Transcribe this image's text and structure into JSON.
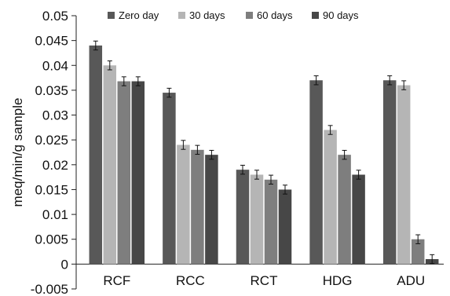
{
  "chart_data": {
    "type": "bar",
    "ylabel": "meq/min/g sample",
    "xlabel": "",
    "title": "",
    "categories": [
      "RCF",
      "RCC",
      "RCT",
      "HDG",
      "ADU"
    ],
    "ylim": [
      -0.005,
      0.05
    ],
    "y_ticks": [
      {
        "value": -0.005,
        "label": "-0.005"
      },
      {
        "value": 0,
        "label": "0"
      },
      {
        "value": 0.005,
        "label": "0.005"
      },
      {
        "value": 0.01,
        "label": "0.01"
      },
      {
        "value": 0.015,
        "label": "0.015"
      },
      {
        "value": 0.02,
        "label": "0.02"
      },
      {
        "value": 0.025,
        "label": "0.025"
      },
      {
        "value": 0.03,
        "label": "0.03"
      },
      {
        "value": 0.035,
        "label": "0.035"
      },
      {
        "value": 0.04,
        "label": "0.04"
      },
      {
        "value": 0.045,
        "label": "0.045"
      },
      {
        "value": 0.05,
        "label": "0.05"
      }
    ],
    "grid": false,
    "legend_position": "top",
    "error_bars": true,
    "series": [
      {
        "name": "Zero day",
        "color": "#585858",
        "values": [
          0.044,
          0.0345,
          0.019,
          0.037,
          0.037
        ],
        "errors": [
          0.0009,
          0.0009,
          0.0009,
          0.0009,
          0.0009
        ]
      },
      {
        "name": "30 days",
        "color": "#b5b5b5",
        "values": [
          0.04,
          0.024,
          0.018,
          0.027,
          0.036
        ],
        "errors": [
          0.0009,
          0.0009,
          0.0009,
          0.0009,
          0.0009
        ]
      },
      {
        "name": "60 days",
        "color": "#7e7e7e",
        "values": [
          0.0368,
          0.023,
          0.017,
          0.022,
          0.005
        ],
        "errors": [
          0.0009,
          0.0009,
          0.0009,
          0.0009,
          0.0009
        ]
      },
      {
        "name": "90 days",
        "color": "#474747",
        "values": [
          0.0368,
          0.022,
          0.015,
          0.018,
          0.001
        ],
        "errors": [
          0.0009,
          0.0009,
          0.0009,
          0.0009,
          0.0009
        ]
      }
    ]
  }
}
